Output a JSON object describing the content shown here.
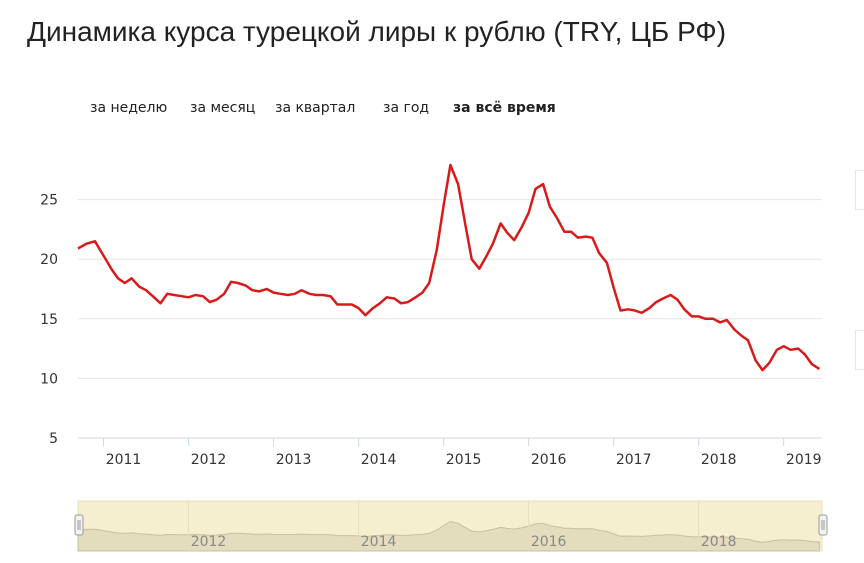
{
  "page": {
    "title": "Динамика курса турецкой лиры к рублю (TRY, ЦБ РФ)"
  },
  "range_tabs": [
    {
      "label": "за неделю",
      "active": false
    },
    {
      "label": "за месяц",
      "active": false
    },
    {
      "label": "за квартал",
      "active": false
    },
    {
      "label": "за год",
      "active": false
    },
    {
      "label": "за всё время",
      "active": true
    }
  ],
  "colors": {
    "line": "#d91a1a",
    "grid": "#e6e6e6",
    "navigator_fill": "#f6efcf",
    "navigator_area": "#d8d0b0"
  },
  "chart_data": {
    "type": "line",
    "title": "Динамика курса турецкой лиры к рублю (TRY, ЦБ РФ)",
    "xlabel": "",
    "ylabel": "",
    "ylim": [
      5,
      30
    ],
    "xlim": [
      2010.7,
      2019.45
    ],
    "yticks": [
      5,
      10,
      15,
      20,
      25
    ],
    "xticks": [
      2011,
      2012,
      2013,
      2014,
      2015,
      2016,
      2017,
      2018,
      2019
    ],
    "grid": true,
    "series": [
      {
        "x": [
          2010.7,
          2010.8,
          2010.9,
          2011.0,
          2011.1,
          2011.17,
          2011.25,
          2011.33,
          2011.42,
          2011.5,
          2011.58,
          2011.67,
          2011.75,
          2011.83,
          2011.92,
          2012.0,
          2012.08,
          2012.17,
          2012.25,
          2012.33,
          2012.42,
          2012.5,
          2012.58,
          2012.67,
          2012.75,
          2012.83,
          2012.92,
          2013.0,
          2013.08,
          2013.17,
          2013.25,
          2013.33,
          2013.42,
          2013.5,
          2013.58,
          2013.67,
          2013.75,
          2013.83,
          2013.92,
          2014.0,
          2014.08,
          2014.17,
          2014.25,
          2014.33,
          2014.42,
          2014.5,
          2014.58,
          2014.67,
          2014.75,
          2014.83,
          2014.92,
          2015.0,
          2015.08,
          2015.17,
          2015.25,
          2015.33,
          2015.42,
          2015.5,
          2015.58,
          2015.67,
          2015.75,
          2015.83,
          2015.92,
          2016.0,
          2016.08,
          2016.17,
          2016.25,
          2016.33,
          2016.42,
          2016.5,
          2016.58,
          2016.67,
          2016.75,
          2016.83,
          2016.92,
          2017.0,
          2017.08,
          2017.17,
          2017.25,
          2017.33,
          2017.42,
          2017.5,
          2017.58,
          2017.67,
          2017.75,
          2017.83,
          2017.92,
          2018.0,
          2018.08,
          2018.17,
          2018.25,
          2018.33,
          2018.42,
          2018.5,
          2018.58,
          2018.67,
          2018.75,
          2018.83,
          2018.92,
          2019.0,
          2019.08,
          2019.17,
          2019.25,
          2019.33,
          2019.42
        ],
        "y": [
          20.9,
          21.3,
          21.5,
          20.3,
          19.1,
          18.4,
          18.0,
          18.4,
          17.7,
          17.4,
          16.9,
          16.3,
          17.1,
          17.0,
          16.9,
          16.8,
          17.0,
          16.9,
          16.4,
          16.6,
          17.1,
          18.1,
          18.0,
          17.8,
          17.4,
          17.3,
          17.5,
          17.2,
          17.1,
          17.0,
          17.1,
          17.4,
          17.1,
          17.0,
          17.0,
          16.9,
          16.2,
          16.2,
          16.2,
          15.9,
          15.3,
          15.9,
          16.3,
          16.8,
          16.7,
          16.3,
          16.4,
          16.8,
          17.2,
          18.0,
          20.8,
          24.5,
          27.9,
          26.3,
          23.1,
          20.0,
          19.2,
          20.2,
          21.3,
          23.0,
          22.2,
          21.6,
          22.7,
          23.9,
          25.9,
          26.3,
          24.4,
          23.5,
          22.3,
          22.3,
          21.8,
          21.9,
          21.8,
          20.5,
          19.7,
          17.6,
          15.7,
          15.8,
          15.7,
          15.5,
          15.9,
          16.4,
          16.7,
          17.0,
          16.6,
          15.8,
          15.2,
          15.2,
          15.0,
          15.0,
          14.7,
          14.9,
          14.1,
          13.6,
          13.2,
          11.5,
          10.7,
          11.3,
          12.4,
          12.7,
          12.4,
          12.5,
          12.0,
          11.2,
          10.8
        ]
      }
    ],
    "navigator": {
      "labels": [
        "2012",
        "2014",
        "2016",
        "2018"
      ],
      "label_years": [
        2012,
        2014,
        2016,
        2018
      ]
    }
  }
}
